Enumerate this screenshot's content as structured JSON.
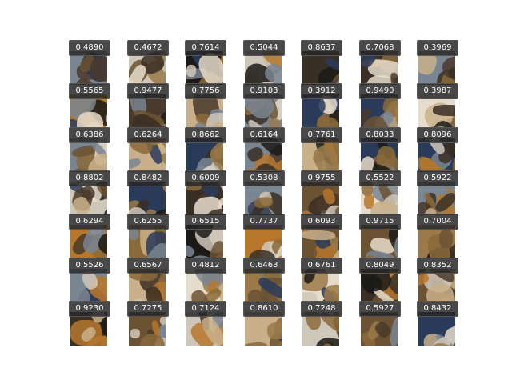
{
  "grid": {
    "rows": [
      [
        "0.4890",
        "0.4672",
        "0.7614",
        "0.5044",
        "0.8637",
        "0.7068",
        "0.3969"
      ],
      [
        "0.5565",
        "0.9477",
        "0.7756",
        "0.9103",
        "0.3912",
        "0.9490",
        "0.3987"
      ],
      [
        "0.6386",
        "0.6264",
        "0.8662",
        "0.6164",
        "0.7761",
        "0.8033",
        "0.8096"
      ],
      [
        "0.8802",
        "0.8482",
        "0.6009",
        "0.5308",
        "0.9755",
        "0.5522",
        "0.5922"
      ],
      [
        "0.6294",
        "0.6255",
        "0.6515",
        "0.7737",
        "0.6093",
        "0.9715",
        "0.7004"
      ],
      [
        "0.5526",
        "0.6567",
        "0.4812",
        "0.6463",
        "0.6761",
        "0.8049",
        "0.8352"
      ],
      [
        "0.9230",
        "0.7275",
        "0.7124",
        "0.8610",
        "0.7248",
        "0.5927",
        "0.8432"
      ]
    ]
  },
  "palette": [
    "#1b1a16",
    "#3a2f24",
    "#6b5232",
    "#9a7a4a",
    "#c9b08a",
    "#e6dccb",
    "#7a8592",
    "#2a3b5a",
    "#b6772b",
    "#d0c7bb",
    "#4a3a2b",
    "#8b6a3a"
  ]
}
